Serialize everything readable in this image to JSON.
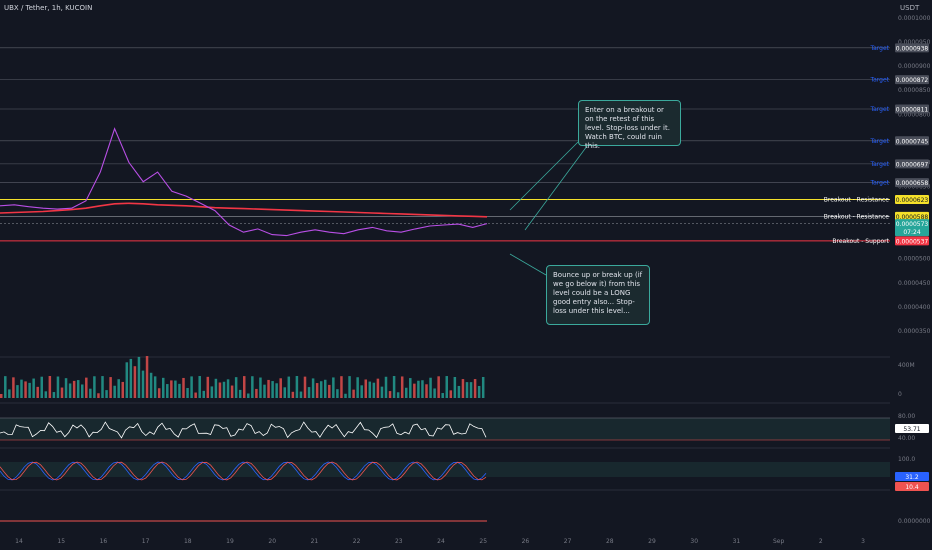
{
  "header": {
    "title": "UBX / Tether, 1h, KUCOIN",
    "currency": "USDT"
  },
  "colors": {
    "background": "#131722",
    "price_line": "#ffffff",
    "ema_red": "#f23645",
    "ema_purple": "#b94fe6",
    "ema_blue": "#2f3fe8",
    "ema_orange": "#ff9800",
    "ema_green": "#26a69a",
    "resistance": "#f5e12a",
    "support": "#f23645",
    "target": "#2962ff",
    "up": "#26a69a",
    "down": "#ef5350"
  },
  "notes": [
    "Enter on a breakout or on the retest of this level. Stop-loss under it. Watch BTC, could ruin this.",
    "Bounce up or break up (if we go below it) from this level could be a LONG good entry also... Stop-loss under this level..."
  ],
  "chart_data": [
    {
      "type": "line",
      "panel": "price",
      "ylim": [
        3e-05,
        1e-05
      ],
      "y_ticks": [
        "0.0001000",
        "0.0000950",
        "0.0000900",
        "0.0000850",
        "0.0000800",
        "0.0000700",
        "0.0000650",
        "0.0000500",
        "0.0000450",
        "0.0000400",
        "0.0000350"
      ],
      "x_ticks": [
        "14",
        "15",
        "16",
        "17",
        "18",
        "19",
        "20",
        "21",
        "22",
        "23",
        "24",
        "25",
        "26",
        "27",
        "28",
        "29",
        "30",
        "31",
        "Sep",
        "2",
        "3"
      ],
      "levels": [
        {
          "label": "Target",
          "value": "0.0000938",
          "kind": "target"
        },
        {
          "label": "Target",
          "value": "0.0000872",
          "kind": "target"
        },
        {
          "label": "Target",
          "value": "0.0000811",
          "kind": "target"
        },
        {
          "label": "Target",
          "value": "0.0000745",
          "kind": "target"
        },
        {
          "label": "Target",
          "value": "0.0000697",
          "kind": "target"
        },
        {
          "label": "Target",
          "value": "0.0000658",
          "kind": "target"
        },
        {
          "label": "Breakout - Resistance",
          "value": "0.0000623",
          "kind": "resistance"
        },
        {
          "label": "Breakout - Resistance",
          "value": "0.0000588",
          "kind": "resistance2"
        },
        {
          "label": "Breakout - Support",
          "value": "0.0000537",
          "kind": "support"
        }
      ],
      "current_price": "0.0000573",
      "countdown": "07:24",
      "series": [
        {
          "values": [
            6.1e-05,
            6.12e-05,
            6.08e-05,
            6.05e-05,
            6.03e-05,
            6.05e-05,
            6.2e-05,
            6.8e-05,
            7.7e-05,
            7e-05,
            6.6e-05,
            6.8e-05,
            6.4e-05,
            6.3e-05,
            6.15e-05,
            6e-05,
            5.7e-05,
            5.55e-05,
            5.62e-05,
            5.5e-05,
            5.48e-05,
            5.55e-05,
            5.6e-05,
            5.55e-05,
            5.52e-05,
            5.6e-05,
            5.65e-05,
            5.58e-05,
            5.55e-05,
            5.62e-05,
            5.68e-05,
            5.7e-05,
            5.72e-05,
            5.65e-05,
            5.73e-05
          ]
        },
        {
          "name": "",
          "values": [
            5.95e-05,
            5.96e-05,
            5.97e-05,
            5.98e-05,
            6e-05,
            6.02e-05,
            6.05e-05,
            6.1e-05,
            6.14e-05,
            6.15e-05,
            6.14e-05,
            6.12e-05,
            6.11e-05,
            6.1e-05,
            6.08e-05,
            6.06e-05,
            6.05e-05,
            6.04e-05,
            6.03e-05,
            6.02e-05,
            6.01e-05,
            6e-05,
            5.99e-05,
            5.98e-05,
            5.97e-05,
            5.96e-05,
            5.95e-05,
            5.94e-05,
            5.93e-05,
            5.92e-05,
            5.91e-05,
            5.9e-05,
            5.89e-05,
            5.88e-05,
            5.87e-05
          ]
        }
      ]
    },
    {
      "type": "bar",
      "panel": "volume",
      "y_ticks": [
        "400M",
        "0"
      ]
    },
    {
      "type": "line",
      "panel": "rsi",
      "y_ticks": [
        "80.00",
        "40.00"
      ],
      "last_value": "53.71"
    },
    {
      "type": "line",
      "panel": "stoch",
      "y_ticks": [
        "100.0"
      ],
      "last_values": [
        "31.2",
        "10.4"
      ]
    },
    {
      "type": "line",
      "panel": "indicator",
      "y_ticks": [
        "0.0000000"
      ]
    }
  ]
}
